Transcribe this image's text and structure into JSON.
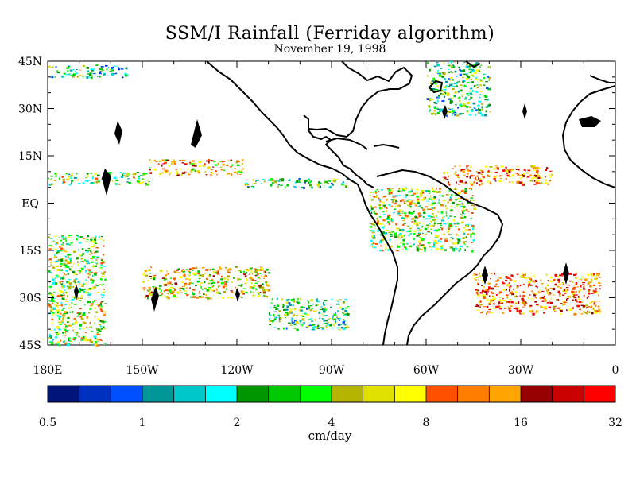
{
  "title": "SSM/I Rainfall (Ferriday algorithm)",
  "date": "November 19, 1998",
  "latitude_labels": [
    "45N",
    "30N",
    "15N",
    "EQ",
    "15S",
    "30S",
    "45S"
  ],
  "longitude_labels": [
    "180E",
    "150W",
    "120W",
    "90W",
    "60W",
    "30W",
    "0"
  ],
  "colorbar": {
    "units": "cm/day",
    "tick_labels": [
      "0.5",
      "1",
      "2",
      "4",
      "8",
      "16",
      "32"
    ],
    "colors": [
      "#00147a",
      "#0030c0",
      "#0050ff",
      "#009696",
      "#00c8c8",
      "#00ffff",
      "#009600",
      "#00c800",
      "#00ff00",
      "#b4b400",
      "#e1e100",
      "#ffff00",
      "#ff5000",
      "#ff7d00",
      "#ffa500",
      "#960000",
      "#c80000",
      "#ff0000"
    ]
  },
  "map": {
    "lat_range": [
      -45,
      45
    ],
    "lon_range": [
      -180,
      0
    ],
    "rain_bands": [
      {
        "name": "north-pacific-band",
        "lon": [
          -180,
          -155
        ],
        "lat": [
          40,
          44
        ],
        "level": 7
      },
      {
        "name": "central-pacific-itcz-a",
        "lon": [
          -180,
          -148
        ],
        "lat": [
          6,
          10
        ],
        "level": 9
      },
      {
        "name": "central-pacific-itcz-b",
        "lon": [
          -148,
          -118
        ],
        "lat": [
          9,
          14
        ],
        "level": 13
      },
      {
        "name": "eastern-pacific-itcz",
        "lon": [
          -118,
          -85
        ],
        "lat": [
          5,
          8
        ],
        "level": 8
      },
      {
        "name": "south-pacific-convergence",
        "lon": [
          -150,
          -110
        ],
        "lat": [
          -30,
          -20
        ],
        "level": 12
      },
      {
        "name": "south-pacific-tail",
        "lon": [
          -110,
          -85
        ],
        "lat": [
          -40,
          -30
        ],
        "level": 8
      },
      {
        "name": "southwest-pacific",
        "lon": [
          -180,
          -162
        ],
        "lat": [
          -45,
          -10
        ],
        "level": 10
      },
      {
        "name": "amazon-convection",
        "lon": [
          -78,
          -45
        ],
        "lat": [
          -15,
          5
        ],
        "level": 10
      },
      {
        "name": "atlantic-itcz",
        "lon": [
          -55,
          -20
        ],
        "lat": [
          6,
          12
        ],
        "level": 15
      },
      {
        "name": "south-atlantic-front",
        "lon": [
          -45,
          -5
        ],
        "lat": [
          -35,
          -22
        ],
        "level": 15
      },
      {
        "name": "north-atlantic-front",
        "lon": [
          -60,
          -40
        ],
        "lat": [
          28,
          45
        ],
        "level": 8
      }
    ]
  }
}
